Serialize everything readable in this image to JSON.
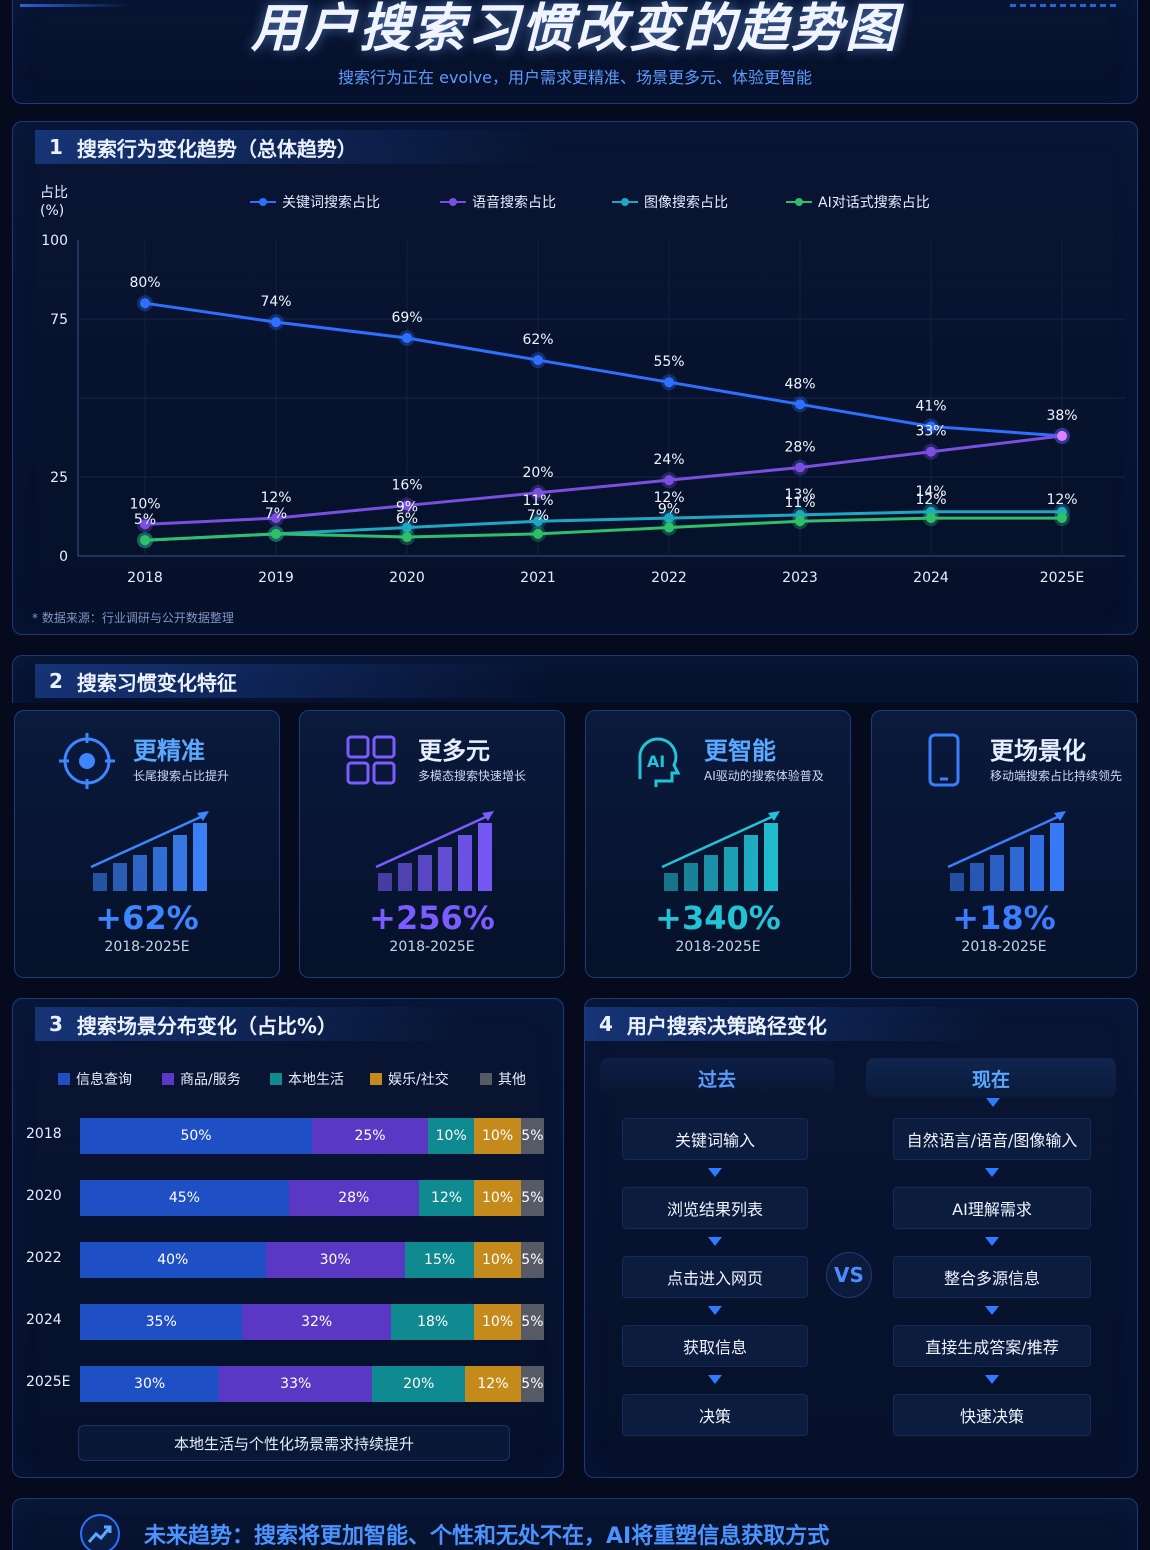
{
  "header": {
    "title": "用户搜索习惯改变的趋势图",
    "subtitle": "搜索行为正在 evolve，用户需求更精准、场景更多元、体验更智能"
  },
  "section1": {
    "num": "1",
    "title": "搜索行为变化趋势（总体趋势）",
    "source_note": "* 数据来源：行业调研与公开数据整理"
  },
  "section2": {
    "num": "2",
    "title": "搜索习惯变化特征",
    "cards": [
      {
        "title": "更精准",
        "desc": "长尾搜索占比提升",
        "value": "+62%",
        "range": "2018-2025E",
        "color": "#3d86ff",
        "icon": "target-icon"
      },
      {
        "title": "更多元",
        "desc": "多模态搜索快速增长",
        "value": "+256%",
        "range": "2018-2025E",
        "color": "#7b5cff",
        "icon": "grid-icon"
      },
      {
        "title": "更智能",
        "desc": "AI驱动的搜索体验普及",
        "value": "+340%",
        "range": "2018-2025E",
        "color": "#22c3d6",
        "icon": "ai-head-icon",
        "icon_text": "AI"
      },
      {
        "title": "更场景化",
        "desc": "移动端搜索占比持续领先",
        "value": "+18%",
        "range": "2018-2025E",
        "color": "#3a7dff",
        "icon": "mobile-icon"
      }
    ]
  },
  "section3": {
    "num": "3",
    "title": "搜索场景分布变化（占比%）",
    "footnote": "本地生活与个性化场景需求持续提升"
  },
  "section4": {
    "num": "4",
    "title": "用户搜索决策路径变化",
    "past_label": "过去",
    "now_label": "现在",
    "vs_label": "VS",
    "past_steps": [
      "关键词输入",
      "浏览结果列表",
      "点击进入网页",
      "获取信息",
      "决策"
    ],
    "now_steps": [
      "自然语言/语音/图像输入",
      "AI理解需求",
      "整合多源信息",
      "直接生成答案/推荐",
      "快速决策"
    ]
  },
  "footer": {
    "text": "未来趋势：搜索将更加智能、个性和无处不在，AI将重塑信息获取方式",
    "icon": "trend-up-icon"
  },
  "colors": {
    "keyword": "#2f6fff",
    "voice": "#7a4fe0",
    "image": "#1fa6c2",
    "ai": "#2fbf6a",
    "info": "#1e4fc4",
    "goods": "#5a38c4",
    "local": "#0e8a90",
    "fun": "#c58a1c",
    "other": "#555a66"
  },
  "chart_data": [
    {
      "type": "line",
      "ylabel": "占比\n(%)",
      "ylim": [
        0,
        100
      ],
      "yticks": [
        0,
        25,
        75,
        100
      ],
      "x": [
        "2018",
        "2019",
        "2020",
        "2021",
        "2022",
        "2023",
        "2024",
        "2025E"
      ],
      "grid": true,
      "legend_position": "top",
      "series": [
        {
          "name": "关键词搜索占比",
          "values": [
            80,
            74,
            69,
            62,
            55,
            48,
            41,
            38
          ],
          "labels": [
            "80%",
            "74%",
            "69%",
            "62%",
            "55%",
            "48%",
            "41%",
            "38%"
          ]
        },
        {
          "name": "语音搜索占比",
          "values": [
            10,
            12,
            16,
            20,
            24,
            28,
            33,
            38
          ],
          "labels": [
            "10%",
            "12%",
            "16%",
            "20%",
            "24%",
            "28%",
            "33%",
            ""
          ]
        },
        {
          "name": "图像搜索占比",
          "values": [
            5,
            7,
            9,
            11,
            12,
            13,
            14,
            14
          ],
          "labels": [
            "5%",
            "7%",
            "9%",
            "11%",
            "12%",
            "13%",
            "14%",
            ""
          ]
        },
        {
          "name": "AI对话式搜索占比",
          "values": [
            5,
            7,
            6,
            7,
            9,
            11,
            12,
            12
          ],
          "labels": [
            "",
            "",
            "6%",
            "7%",
            "9%",
            "11%",
            "12%",
            "12%"
          ]
        }
      ]
    },
    {
      "type": "bar",
      "orientation": "horizontal-stacked",
      "categories": [
        "2018",
        "2020",
        "2022",
        "2024",
        "2025E"
      ],
      "legend_position": "top",
      "series": [
        {
          "name": "信息查询",
          "values": [
            50,
            45,
            40,
            35,
            30
          ]
        },
        {
          "name": "商品/服务",
          "values": [
            25,
            28,
            30,
            32,
            33
          ]
        },
        {
          "name": "本地生活",
          "values": [
            10,
            12,
            15,
            18,
            20
          ]
        },
        {
          "name": "娱乐/社交",
          "values": [
            10,
            10,
            10,
            10,
            12
          ]
        },
        {
          "name": "其他",
          "values": [
            5,
            5,
            5,
            5,
            5
          ]
        }
      ]
    }
  ]
}
